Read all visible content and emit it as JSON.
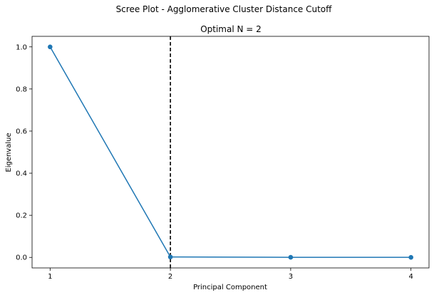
{
  "chart_data": {
    "type": "line",
    "suptitle": "Scree Plot -  Agglomerative Cluster Distance Cutoff",
    "title": "Optimal N = 2",
    "xlabel": "Principal Component",
    "ylabel": "Eigenvalue",
    "x": [
      1,
      2,
      3,
      4
    ],
    "series": [
      {
        "values": [
          1.0,
          0.002,
          0.0005,
          0.0002
        ]
      }
    ],
    "xticks": [
      1,
      2,
      3,
      4
    ],
    "yticks": [
      0.0,
      0.2,
      0.4,
      0.6,
      0.8,
      1.0
    ],
    "ytick_labels": [
      "0.0",
      "0.2",
      "0.4",
      "0.6",
      "0.8",
      "1.0"
    ],
    "xlim": [
      0.85,
      4.15
    ],
    "ylim": [
      -0.05,
      1.05
    ],
    "vline": {
      "x": 2,
      "style": "dashed"
    },
    "line_color": "#1f77b4",
    "vline_color": "#000000",
    "grid": false,
    "legend": false
  }
}
